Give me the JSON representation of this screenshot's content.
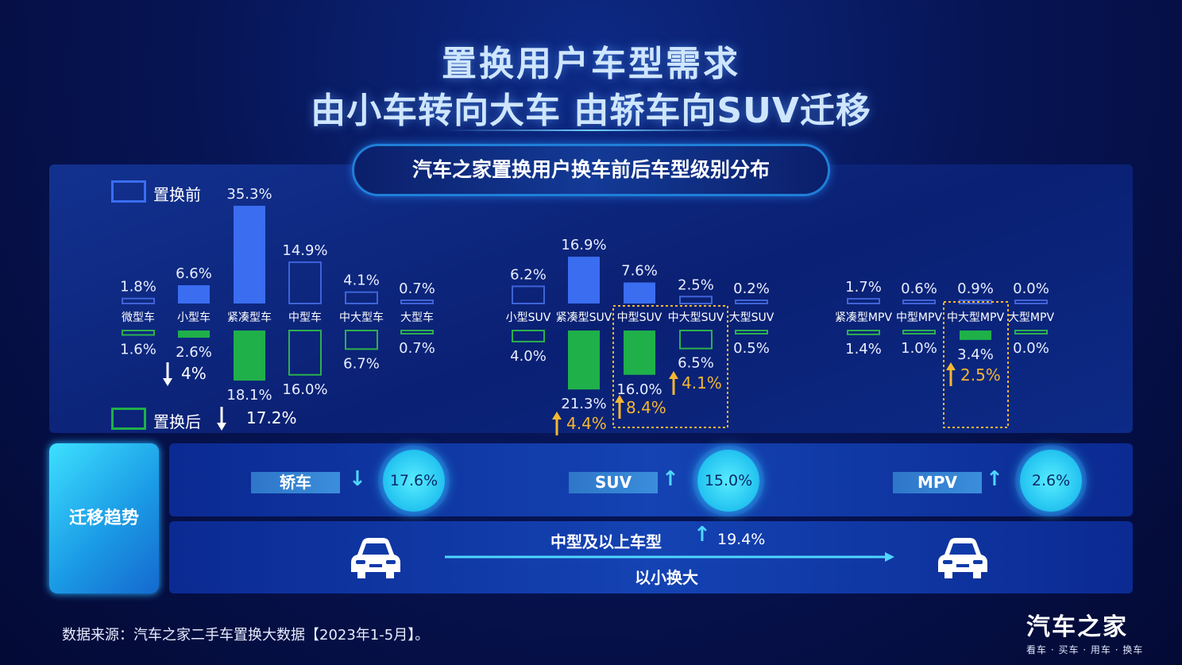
{
  "header": {
    "line1": "置换用户车型需求",
    "line2": "由小车转向大车 由轿车向SUV迁移"
  },
  "chart_data": {
    "type": "bar",
    "title": "汽车之家置换用户换车前后车型级别分布",
    "legend": {
      "before": "置换前",
      "after": "置换后"
    },
    "colors": {
      "before_fill": "#3a6df0",
      "after_fill": "#1fb04a",
      "before_outline": "#3f63d8",
      "after_outline": "#2db04f",
      "highlight": "#f5b731"
    },
    "groups": [
      {
        "name": "轿车",
        "categories": [
          "微型车",
          "小型车",
          "紧凑型车",
          "中型车",
          "中大型车",
          "大型车"
        ],
        "before": [
          1.8,
          6.6,
          35.3,
          14.9,
          4.1,
          0.7
        ],
        "after": [
          1.6,
          2.6,
          18.1,
          16.0,
          6.7,
          0.7
        ],
        "before_labels": [
          "1.8%",
          "6.6%",
          "35.3%",
          "14.9%",
          "4.1%",
          "0.7%"
        ],
        "after_labels": [
          "1.6%",
          "2.6%",
          "18.1%",
          "16.0%",
          "6.7%",
          "0.7%"
        ],
        "highlight_before": [
          false,
          true,
          true,
          false,
          false,
          false
        ],
        "highlight_after": [
          false,
          true,
          true,
          false,
          false,
          false
        ]
      },
      {
        "name": "SUV",
        "categories": [
          "小型SUV",
          "紧凑型SUV",
          "中型SUV",
          "中大型SUV",
          "大型SUV"
        ],
        "before": [
          6.2,
          16.9,
          7.6,
          2.5,
          0.2
        ],
        "after": [
          4.0,
          21.3,
          16.0,
          6.5,
          0.5
        ],
        "before_labels": [
          "6.2%",
          "16.9%",
          "7.6%",
          "2.5%",
          "0.2%"
        ],
        "after_labels": [
          "4.0%",
          "21.3%",
          "16.0%",
          "6.5%",
          "0.5%"
        ],
        "highlight_before": [
          false,
          true,
          true,
          false,
          false
        ],
        "highlight_after": [
          false,
          true,
          true,
          false,
          false
        ]
      },
      {
        "name": "MPV",
        "categories": [
          "紧凑型MPV",
          "中型MPV",
          "中大型MPV",
          "大型MPV"
        ],
        "before": [
          1.7,
          0.6,
          0.9,
          0.0
        ],
        "after": [
          1.4,
          1.0,
          3.4,
          0.0
        ],
        "before_labels": [
          "1.7%",
          "0.6%",
          "0.9%",
          "0.0%"
        ],
        "after_labels": [
          "1.4%",
          "1.0%",
          "3.4%",
          "0.0%"
        ],
        "highlight_before": [
          false,
          false,
          false,
          false
        ],
        "highlight_after": [
          false,
          false,
          true,
          false
        ]
      }
    ],
    "changes": [
      {
        "text": "4%",
        "direction": "down",
        "target": "小型车"
      },
      {
        "text": "17.2%",
        "direction": "down",
        "target": "紧凑型车"
      },
      {
        "text": "4.4%",
        "direction": "up",
        "target": "紧凑型SUV"
      },
      {
        "text": "8.4%",
        "direction": "up",
        "target": "中型SUV"
      },
      {
        "text": "4.1%",
        "direction": "up",
        "target": "中大型SUV"
      },
      {
        "text": "2.5%",
        "direction": "up",
        "target": "中大型MPV"
      }
    ]
  },
  "trend": {
    "label": "迁移趋势",
    "items": [
      {
        "name": "轿车",
        "direction": "down",
        "value": "17.6%"
      },
      {
        "name": "SUV",
        "direction": "up",
        "value": "15.0%"
      },
      {
        "name": "MPV",
        "direction": "up",
        "value": "2.6%"
      }
    ],
    "size_shift": {
      "label": "中型及以上车型",
      "value": "19.4%",
      "direction": "up",
      "caption": "以小换大"
    }
  },
  "footer": {
    "source": "数据来源：汽车之家二手车置换大数据【2023年1-5月】。",
    "brand": "汽车之家",
    "brand_sub": "看车 · 买车 · 用车 · 换车"
  }
}
